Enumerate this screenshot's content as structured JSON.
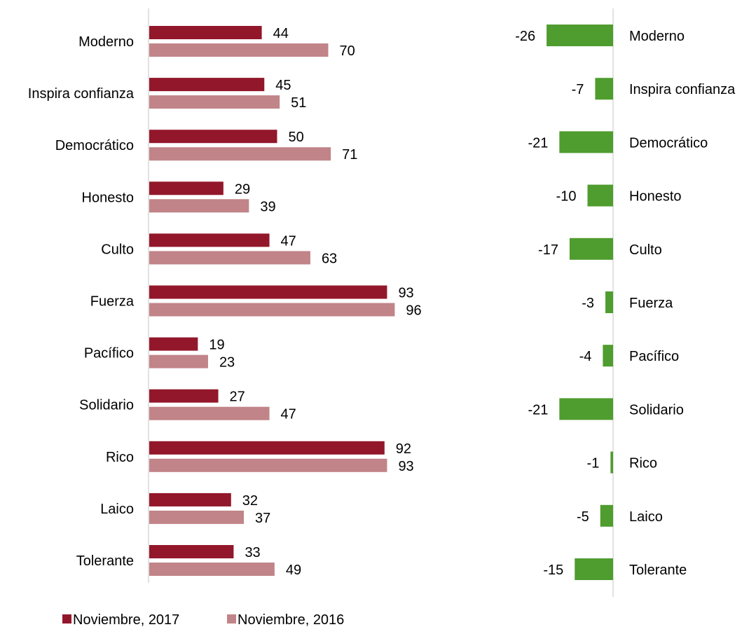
{
  "colors": {
    "series_2017": "#93172b",
    "series_2016": "#c18488",
    "diff": "#4f9c2f",
    "axis": "#d9d9d9"
  },
  "legend": {
    "series_2017": "Noviembre, 2017",
    "series_2016": "Noviembre, 2016"
  },
  "chart_data": [
    {
      "type": "bar",
      "orientation": "horizontal",
      "categories": [
        "Moderno",
        "Inspira confianza",
        "Democrático",
        "Honesto",
        "Culto",
        "Fuerza",
        "Pacífico",
        "Solidario",
        "Rico",
        "Laico",
        "Tolerante"
      ],
      "series": [
        {
          "name": "Noviembre, 2017",
          "values": [
            44,
            45,
            50,
            29,
            47,
            93,
            19,
            27,
            92,
            32,
            33
          ]
        },
        {
          "name": "Noviembre, 2016",
          "values": [
            70,
            51,
            71,
            39,
            63,
            96,
            23,
            47,
            93,
            37,
            49
          ]
        }
      ],
      "xlim": [
        0,
        100
      ],
      "legend_position": "bottom-left",
      "grid": false
    },
    {
      "type": "bar",
      "orientation": "horizontal",
      "categories": [
        "Moderno",
        "Inspira confianza",
        "Democrático",
        "Honesto",
        "Culto",
        "Fuerza",
        "Pacífico",
        "Solidario",
        "Rico",
        "Laico",
        "Tolerante"
      ],
      "values": [
        -26,
        -7,
        -21,
        -10,
        -17,
        -3,
        -4,
        -21,
        -1,
        -5,
        -15
      ],
      "xlim": [
        -30,
        0
      ],
      "grid": false
    }
  ]
}
